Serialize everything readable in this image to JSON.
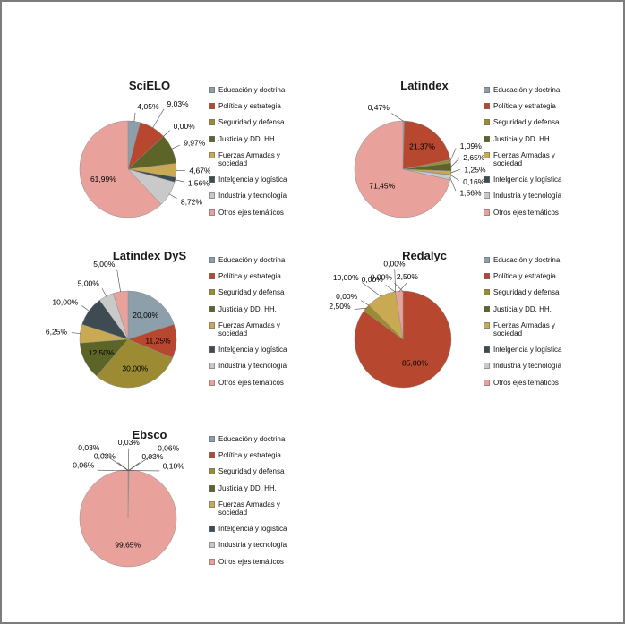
{
  "page": {
    "background": "#ffffff",
    "border_color": "#7d7d7d"
  },
  "legend": {
    "position": "right",
    "items": [
      {
        "label": "Educación y doctrina",
        "color": "#8C9FAB"
      },
      {
        "label": "Política y estrategia",
        "color": "#B8472F"
      },
      {
        "label": "Seguridad y defensa",
        "color": "#9C8B33"
      },
      {
        "label": "Justicia y DD. HH.",
        "color": "#5C6428"
      },
      {
        "label": "Fuerzas Armadas y sociedad",
        "color": "#C9A952"
      },
      {
        "label": "Intelgencia y logística",
        "color": "#3E4B52"
      },
      {
        "label": "Industria y tecnología",
        "color": "#C9C9C9"
      },
      {
        "label": "Otros ejes temáticos",
        "color": "#E8A19B"
      }
    ]
  },
  "chart_data": [
    {
      "type": "pie",
      "title": "SciELO",
      "legend_position": "right",
      "categories": [
        "Educación y doctrina",
        "Política y estrategia",
        "Seguridad y defensa",
        "Justicia y DD. HH.",
        "Fuerzas Armadas y sociedad",
        "Intelgencia y logística",
        "Industria y tecnología",
        "Otros ejes temáticos"
      ],
      "values": [
        4.05,
        9.03,
        0.0,
        9.97,
        4.67,
        1.56,
        8.72,
        61.99
      ],
      "labels": [
        "4,05%",
        "9,03%",
        "0,00%",
        "9,97%",
        "4,67%",
        "1,56%",
        "8,72%",
        "61,99%"
      ]
    },
    {
      "type": "pie",
      "title": "Latindex",
      "legend_position": "right",
      "categories": [
        "Educación y doctrina",
        "Política y estrategia",
        "Seguridad y defensa",
        "Justicia y DD. HH.",
        "Fuerzas Armadas y sociedad",
        "Intelgencia y logística",
        "Industria y tecnología",
        "Otros ejes temáticos"
      ],
      "values": [
        0.47,
        21.37,
        1.09,
        2.65,
        1.25,
        0.16,
        1.56,
        71.45
      ],
      "labels": [
        "0,47%",
        "21,37%",
        "1,09%",
        "2,65%",
        "1,25%",
        "0,16%",
        "1,56%",
        "71,45%"
      ]
    },
    {
      "type": "pie",
      "title": "Latindex DyS",
      "legend_position": "right",
      "categories": [
        "Educación y doctrina",
        "Política y estrategia",
        "Seguridad y defensa",
        "Justicia y DD. HH.",
        "Fuerzas Armadas y sociedad",
        "Intelgencia y logística",
        "Industria y tecnología",
        "Otros ejes temáticos"
      ],
      "values": [
        20.0,
        11.25,
        30.0,
        12.5,
        6.25,
        10.0,
        5.0,
        5.0
      ],
      "labels": [
        "20,00%",
        "11,25%",
        "30,00%",
        "12,50%",
        "6,25%",
        "10,00%",
        "5,00%",
        "5,00%"
      ]
    },
    {
      "type": "pie",
      "title": "Redalyc",
      "legend_position": "right",
      "categories": [
        "Educación y doctrina",
        "Política y estrategia",
        "Seguridad y defensa",
        "Justicia y DD. HH.",
        "Fuerzas Armadas y sociedad",
        "Intelgencia y logística",
        "Industria y tecnología",
        "Otros ejes temáticos"
      ],
      "values": [
        0.0,
        85.0,
        2.5,
        0.0,
        10.0,
        0.0,
        0.0,
        2.5
      ],
      "labels": [
        "0,00%",
        "85,00%",
        "2,50%",
        "0,00%",
        "10,00%",
        "0,00%",
        "0,00%",
        "2,50%"
      ]
    },
    {
      "type": "pie",
      "title": "Ebsco",
      "legend_position": "right",
      "categories": [
        "Educación y doctrina",
        "Política y estrategia",
        "Seguridad y defensa",
        "Justicia y DD. HH.",
        "Fuerzas Armadas y sociedad",
        "Intelgencia y logística",
        "Industria y tecnología",
        "Otros ejes temáticos"
      ],
      "values": [
        0.06,
        0.03,
        0.03,
        0.03,
        0.03,
        0.06,
        0.1,
        99.65
      ],
      "labels": [
        "0,06%",
        "0,03%",
        "0,03%",
        "0,03%",
        "0,03%",
        "0,06%",
        "0,10%",
        "99,65%"
      ]
    }
  ]
}
